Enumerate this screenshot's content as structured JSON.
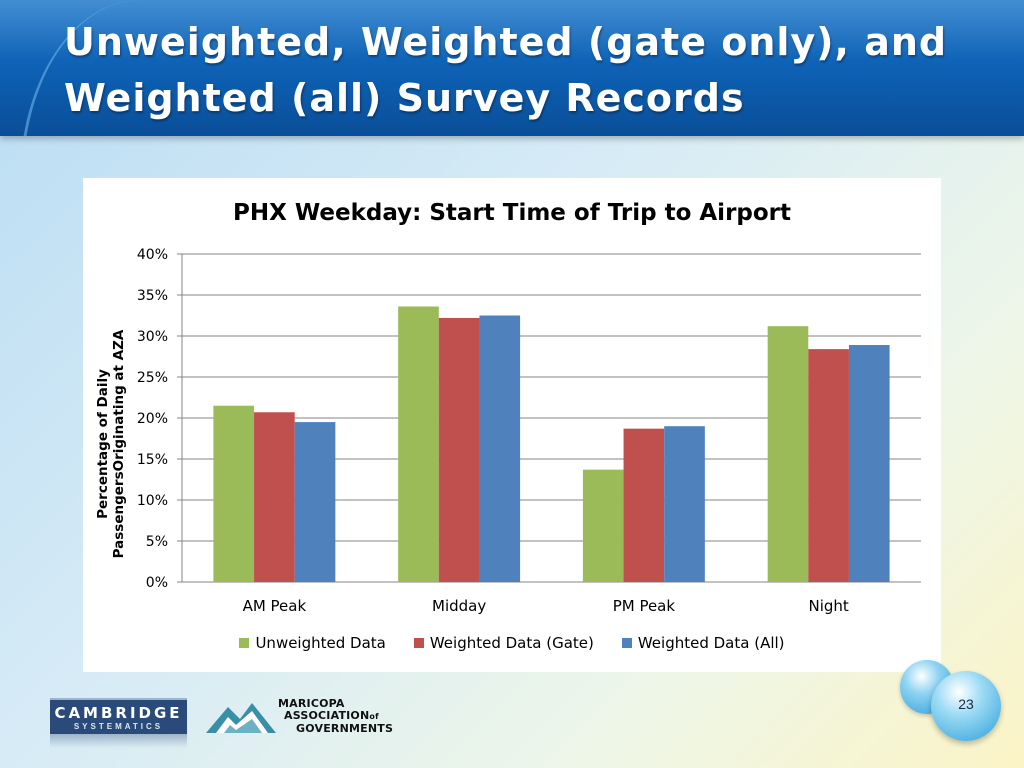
{
  "slide": {
    "title_line1": "Unweighted, Weighted (gate only), and",
    "title_line2": "Weighted (all) Survey Records",
    "page_number": "23"
  },
  "logos": {
    "cambridge_name": "CAMBRIDGE",
    "cambridge_sub": "SYSTEMATICS",
    "mag_line1": "MARICOPA",
    "mag_line2": "ASSOCIATION",
    "mag_of": "of",
    "mag_line3": "GOVERNMENTS"
  },
  "colors": {
    "unweighted": "#9bbb59",
    "weighted_gate": "#c0504d",
    "weighted_all": "#4f81bd",
    "header_blue": "#0d5fb2"
  },
  "chart_data": {
    "type": "bar",
    "title": "PHX Weekday: Start Time of Trip to Airport",
    "xlabel": "",
    "ylabel": "Percentage of Daily PassengersOriginating  at AZA",
    "categories": [
      "AM Peak",
      "Midday",
      "PM Peak",
      "Night"
    ],
    "series": [
      {
        "name": "Unweighted Data",
        "color": "#9bbb59",
        "values": [
          21.5,
          33.6,
          13.7,
          31.2
        ]
      },
      {
        "name": "Weighted Data (Gate)",
        "color": "#c0504d",
        "values": [
          20.7,
          32.2,
          18.7,
          28.4
        ]
      },
      {
        "name": "Weighted Data (All)",
        "color": "#4f81bd",
        "values": [
          19.5,
          32.5,
          19.0,
          28.9
        ]
      }
    ],
    "ylim": [
      0,
      40
    ],
    "yticks": [
      0,
      5,
      10,
      15,
      20,
      25,
      30,
      35,
      40
    ],
    "ytick_labels": [
      "0%",
      "5%",
      "10%",
      "15%",
      "20%",
      "25%",
      "30%",
      "35%",
      "40%"
    ],
    "grid": true,
    "legend_position": "bottom"
  }
}
